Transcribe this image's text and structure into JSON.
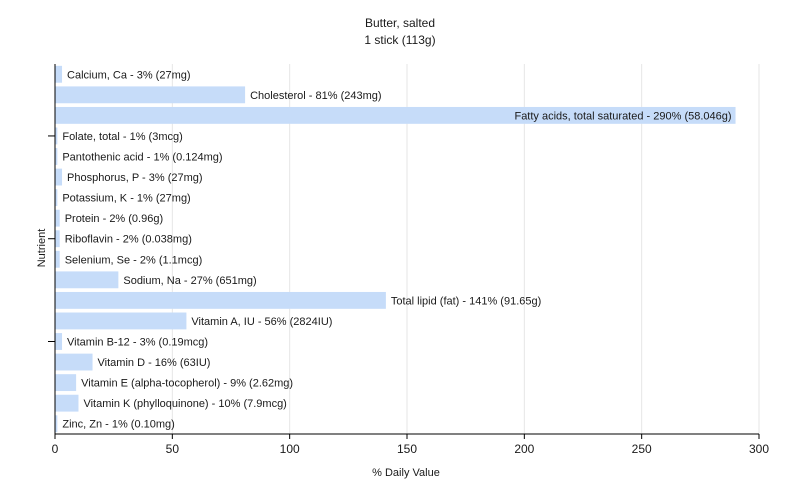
{
  "chart_data": {
    "type": "bar",
    "orientation": "horizontal",
    "title": "Butter, salted",
    "subtitle": "1 stick (113g)",
    "xlabel": "% Daily Value",
    "ylabel": "Nutrient",
    "xlim": [
      0,
      300
    ],
    "xticks": [
      "0",
      "50",
      "100",
      "150",
      "200",
      "250",
      "300"
    ],
    "grid": true,
    "bar_color": "#c6dcf9",
    "categories": [
      "Calcium, Ca",
      "Cholesterol",
      "Fatty acids, total saturated",
      "Folate, total",
      "Pantothenic acid",
      "Phosphorus, P",
      "Potassium, K",
      "Protein",
      "Riboflavin",
      "Selenium, Se",
      "Sodium, Na",
      "Total lipid (fat)",
      "Vitamin A, IU",
      "Vitamin B-12",
      "Vitamin D",
      "Vitamin E (alpha-tocopherol)",
      "Vitamin K (phylloquinone)",
      "Zinc, Zn"
    ],
    "values": [
      3,
      81,
      290,
      1,
      1,
      3,
      1,
      2,
      2,
      2,
      27,
      141,
      56,
      3,
      16,
      9,
      10,
      1
    ],
    "labels": [
      "Calcium, Ca - 3% (27mg)",
      "Cholesterol - 81% (243mg)",
      "Fatty acids, total saturated - 290% (58.046g)",
      "Folate, total - 1% (3mcg)",
      "Pantothenic acid - 1% (0.124mg)",
      "Phosphorus, P - 3% (27mg)",
      "Potassium, K - 1% (27mg)",
      "Protein - 2% (0.96g)",
      "Riboflavin - 2% (0.038mg)",
      "Selenium, Se - 2% (1.1mcg)",
      "Sodium, Na - 27% (651mg)",
      "Total lipid (fat) - 141% (91.65g)",
      "Vitamin A, IU - 56% (2824IU)",
      "Vitamin B-12 - 3% (0.19mcg)",
      "Vitamin D - 16% (63IU)",
      "Vitamin E (alpha-tocopherol) - 9% (2.62mg)",
      "Vitamin K (phylloquinone) - 10% (7.9mcg)",
      "Zinc, Zn - 1% (0.10mg)"
    ]
  }
}
